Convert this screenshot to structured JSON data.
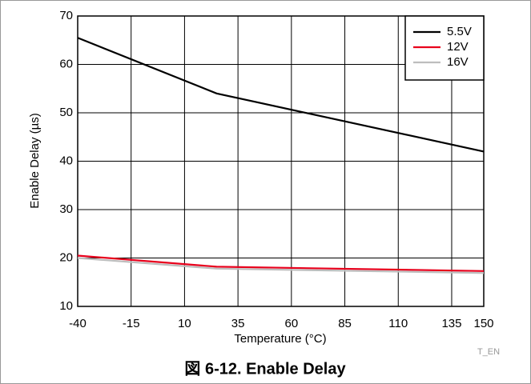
{
  "chart_data": {
    "type": "line",
    "x_label": "Temperature (°C)",
    "y_label": "Enable Delay (µs)",
    "caption": "図 6-12. Enable Delay",
    "annotation": "T_EN",
    "x": [
      -40,
      25,
      150
    ],
    "series": [
      {
        "name": "5.5V",
        "color": "#000000",
        "values": [
          65.5,
          54,
          42
        ]
      },
      {
        "name": "12V",
        "color": "#e8001c",
        "values": [
          20.5,
          18.2,
          17.3
        ]
      },
      {
        "name": "16V",
        "color": "#bdbdbd",
        "values": [
          20,
          17.8,
          16.9
        ]
      }
    ],
    "xlim": [
      -40,
      150
    ],
    "xticks": [
      -40,
      -15,
      10,
      35,
      60,
      85,
      110,
      135,
      150
    ],
    "ylim": [
      10,
      70
    ],
    "yticks": [
      10,
      20,
      30,
      40,
      50,
      60,
      70
    ],
    "grid": true,
    "legend": "upper right"
  }
}
